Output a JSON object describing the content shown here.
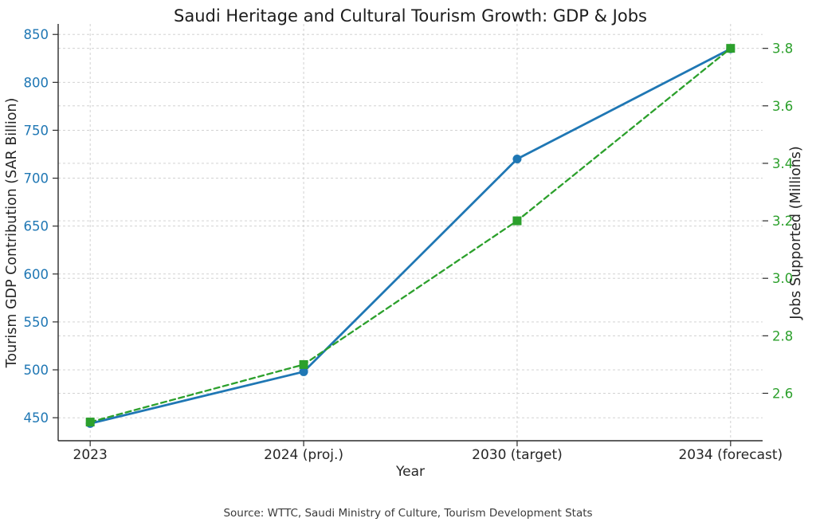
{
  "page": {
    "background": "#ffffff"
  },
  "chart_data": {
    "type": "line",
    "title": "Saudi Heritage and Cultural Tourism Growth: GDP & Jobs",
    "xlabel": "Year",
    "categories": [
      "2023",
      "2024 (proj.)",
      "2030 (target)",
      "2034 (forecast)"
    ],
    "x_range": [
      -0.15,
      3.15
    ],
    "grid": true,
    "legend": "none",
    "left_axis": {
      "label": "Tourism GDP Contribution (SAR Billion)",
      "color": "#1f77b4",
      "ticks": [
        "450",
        "500",
        "550",
        "600",
        "650",
        "700",
        "750",
        "800",
        "850"
      ],
      "range": [
        426,
        861
      ],
      "tick_font_size": 16.5
    },
    "right_axis": {
      "label": "Jobs Supported (Millions)",
      "color": "#2ca02c",
      "ticks": [
        "2.6",
        "2.8",
        "3.0",
        "3.2",
        "3.4",
        "3.6",
        "3.8"
      ],
      "range": [
        2.435,
        3.885
      ],
      "tick_font_size": 16.5
    },
    "series": [
      {
        "name": "Tourism GDP Contribution (SAR Billion)",
        "axis": "left",
        "values": [
          444,
          498,
          720,
          835
        ],
        "color": "#1f77b4",
        "line_style": "solid",
        "line_width": 2.8,
        "marker": "circle",
        "marker_size": 11
      },
      {
        "name": "Jobs Supported (Millions)",
        "axis": "right",
        "values": [
          2.5,
          2.7,
          3.2,
          3.8
        ],
        "color": "#2ca02c",
        "line_style": "dashed",
        "line_width": 2.3,
        "marker": "square",
        "marker_size": 11
      }
    ],
    "grid_color": "#cccccc",
    "spine_color": "#2b2b2b",
    "source_note": "Source: WTTC, Saudi Ministry of Culture, Tourism Development Stats"
  }
}
